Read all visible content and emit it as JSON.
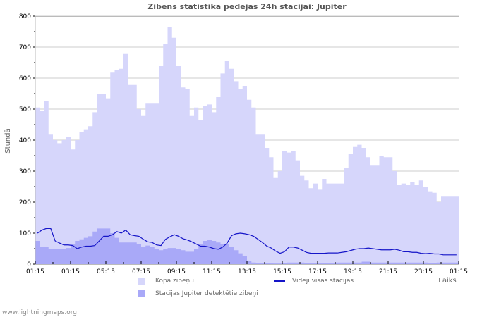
{
  "title": "Zibens statistika pēdējās 24h stacijai: Jupiter",
  "ylabel": "Stundā",
  "xlabel": "Laiks",
  "footer": "www.lightningmaps.org",
  "colors": {
    "total_fill": "#d6d6fb",
    "station_fill": "#a9a9f8",
    "average_line": "#1515c8",
    "grid": "#cccccc",
    "axis": "#bbbbbb"
  },
  "legend": [
    {
      "label": "Kopā zibeņu",
      "type": "area",
      "color": "#d6d6fb"
    },
    {
      "label": "Stacijas Jupiter detektētie zibeņi",
      "type": "area",
      "color": "#a9a9f8"
    },
    {
      "label": "Vidēji visās stacijās",
      "type": "line",
      "color": "#1515c8"
    }
  ],
  "chart_data": {
    "type": "area",
    "title": "Zibens statistika pēdējās 24h stacijai: Jupiter",
    "xlabel": "Laiks",
    "ylabel": "Stundā",
    "ylim": [
      0,
      800
    ],
    "yticks": [
      0,
      100,
      200,
      300,
      400,
      500,
      600,
      700,
      800
    ],
    "xticks": [
      "01:15",
      "03:15",
      "05:15",
      "07:15",
      "09:15",
      "11:15",
      "13:15",
      "15:15",
      "17:15",
      "19:15",
      "21:15",
      "23:15",
      "01:15"
    ],
    "grid": true,
    "interval_minutes": 15,
    "series": [
      {
        "name": "Kopā zibeņu",
        "type": "area",
        "values": [
          505,
          495,
          525,
          420,
          400,
          390,
          400,
          410,
          370,
          400,
          425,
          435,
          445,
          490,
          550,
          550,
          535,
          620,
          625,
          630,
          680,
          580,
          580,
          500,
          480,
          520,
          520,
          520,
          640,
          710,
          765,
          730,
          640,
          570,
          565,
          480,
          505,
          465,
          510,
          515,
          490,
          540,
          615,
          655,
          630,
          590,
          565,
          575,
          530,
          505,
          420,
          420,
          375,
          345,
          280,
          300,
          365,
          360,
          365,
          335,
          285,
          270,
          245,
          260,
          240,
          275,
          260,
          260,
          260,
          260,
          310,
          355,
          380,
          385,
          375,
          345,
          320,
          320,
          350,
          345,
          345,
          300,
          255,
          260,
          255,
          265,
          255,
          270,
          250,
          235,
          230,
          200,
          220,
          220,
          220,
          220
        ]
      },
      {
        "name": "Stacijas Jupiter detektētie zibeņi",
        "type": "area",
        "values": [
          75,
          55,
          55,
          50,
          48,
          48,
          50,
          52,
          65,
          75,
          80,
          85,
          90,
          105,
          115,
          115,
          115,
          100,
          85,
          70,
          70,
          70,
          70,
          65,
          55,
          60,
          55,
          50,
          45,
          50,
          52,
          52,
          50,
          45,
          40,
          40,
          50,
          65,
          75,
          78,
          75,
          70,
          65,
          65,
          55,
          45,
          35,
          25,
          10,
          5,
          3,
          3,
          3,
          3,
          2,
          2,
          3,
          5,
          5,
          5,
          5,
          4,
          3,
          3,
          3,
          4,
          4,
          4,
          5,
          5,
          5,
          5,
          5,
          5,
          8,
          8,
          5,
          5,
          5,
          5,
          5,
          5,
          5,
          5,
          5,
          5,
          5,
          5,
          5,
          3,
          3,
          5,
          5,
          5,
          5,
          5
        ]
      },
      {
        "name": "Vidēji visās stacijās",
        "type": "line",
        "values": [
          100,
          110,
          115,
          115,
          75,
          68,
          62,
          62,
          60,
          50,
          55,
          58,
          58,
          60,
          75,
          90,
          90,
          95,
          105,
          100,
          110,
          95,
          92,
          90,
          80,
          72,
          70,
          62,
          60,
          80,
          88,
          95,
          90,
          82,
          78,
          72,
          65,
          58,
          58,
          55,
          50,
          48,
          55,
          68,
          92,
          98,
          100,
          98,
          95,
          90,
          80,
          70,
          58,
          52,
          42,
          35,
          40,
          55,
          55,
          52,
          45,
          38,
          35,
          35,
          35,
          35,
          36,
          36,
          36,
          38,
          40,
          44,
          48,
          50,
          50,
          52,
          50,
          48,
          46,
          46,
          46,
          48,
          45,
          40,
          40,
          38,
          38,
          35,
          34,
          35,
          33,
          33,
          30,
          30,
          30,
          30
        ]
      }
    ]
  }
}
